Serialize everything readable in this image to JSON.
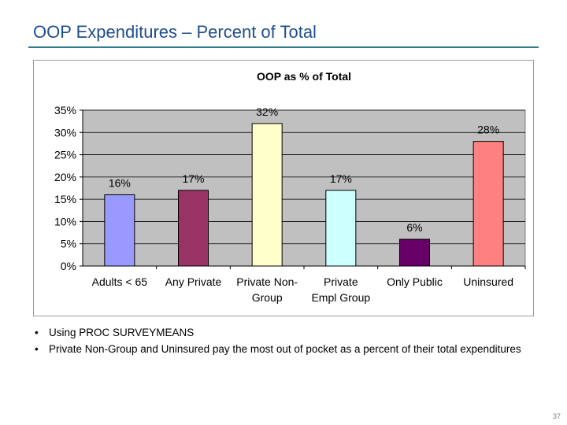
{
  "slide": {
    "title": "OOP Expenditures – Percent of Total",
    "page_number": "37"
  },
  "bullets": [
    "Using PROC SURVEYMEANS",
    "Private Non-Group and Uninsured pay the most out of pocket as a percent of their total expenditures"
  ],
  "chart_data": {
    "type": "bar",
    "title": "OOP as % of Total",
    "categories": [
      [
        "Adults < 65"
      ],
      [
        "Any Private"
      ],
      [
        "Private Non-",
        "Group"
      ],
      [
        "Private",
        "Empl Group"
      ],
      [
        "Only Public"
      ],
      [
        "Uninsured"
      ]
    ],
    "values": [
      16,
      17,
      32,
      17,
      6,
      28
    ],
    "data_labels": [
      "16%",
      "17%",
      "32%",
      "17%",
      "6%",
      "28%"
    ],
    "bar_colors": [
      "#9999ff",
      "#993366",
      "#ffffcc",
      "#ccffff",
      "#660066",
      "#ff8080"
    ],
    "plot_background": "#c0c0c0",
    "ylim": [
      0,
      35
    ],
    "yticks": [
      0,
      5,
      10,
      15,
      20,
      25,
      30,
      35
    ],
    "ytick_labels": [
      "0%",
      "5%",
      "10%",
      "15%",
      "20%",
      "25%",
      "30%",
      "35%"
    ],
    "xlabel": "",
    "ylabel": "",
    "grid": true,
    "legend": "none"
  }
}
